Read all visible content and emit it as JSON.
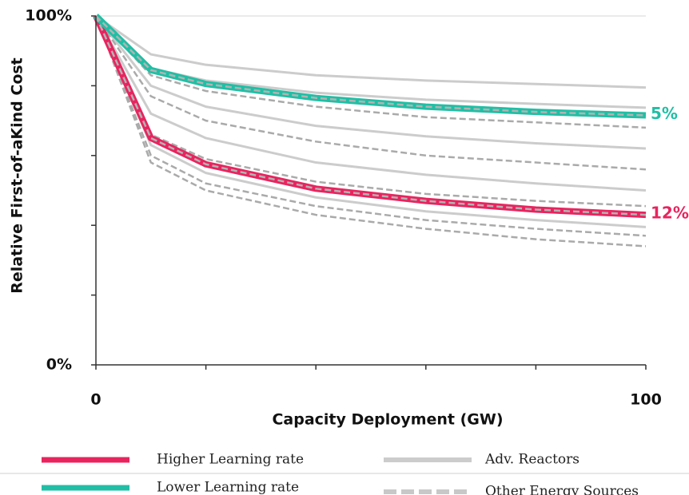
{
  "chart_data": {
    "type": "line",
    "ylabel": "Relative First-of-aKind Cost",
    "xlabel": "Capacity Deployment (GW)",
    "x": [
      0,
      10,
      20,
      40,
      60,
      80,
      100
    ],
    "xlim": [
      0,
      100
    ],
    "ylim": [
      0,
      100
    ],
    "xticks": [
      0,
      {
        "value": 20,
        "label": null
      },
      {
        "value": 40,
        "label": null
      },
      {
        "value": 60,
        "label": null
      },
      {
        "value": 80,
        "label": null
      },
      100
    ],
    "yticks": [
      {
        "value": 0,
        "label": "0%"
      },
      {
        "value": 20,
        "label": null
      },
      {
        "value": 40,
        "label": null
      },
      {
        "value": 60,
        "label": null
      },
      {
        "value": 80,
        "label": null
      },
      {
        "value": 100,
        "label": "100%"
      }
    ],
    "series": [
      {
        "name": "Higher Learning rate",
        "color": "#e8245f",
        "dashed": false,
        "thick": true,
        "end_label": "12%",
        "values": [
          100,
          65,
          57.5,
          50.5,
          47,
          44.5,
          43
        ]
      },
      {
        "name": "Lower Learning rate",
        "color": "#20bfa5",
        "dashed": false,
        "thick": true,
        "end_label": "5%",
        "values": [
          100,
          84.5,
          80.5,
          76.5,
          74,
          72.5,
          71.5
        ]
      },
      {
        "name": "Adv. Reactors",
        "color": "#cccccc",
        "dashed": false,
        "thick": false,
        "values": [
          100,
          89,
          86,
          83,
          81.5,
          80.5,
          79.5
        ]
      },
      {
        "name": "Adv. Reactors",
        "color": "#cccccc",
        "dashed": false,
        "thick": false,
        "values": [
          100,
          85,
          81.5,
          78,
          76,
          74.8,
          73.7
        ]
      },
      {
        "name": "Adv. Reactors",
        "color": "#cccccc",
        "dashed": false,
        "thick": false,
        "values": [
          100,
          80,
          74,
          68.5,
          65.5,
          63.5,
          62
        ]
      },
      {
        "name": "Adv. Reactors",
        "color": "#cccccc",
        "dashed": false,
        "thick": false,
        "values": [
          100,
          72,
          65,
          58,
          54.5,
          52,
          50
        ]
      },
      {
        "name": "Adv. Reactors",
        "color": "#cccccc",
        "dashed": false,
        "thick": false,
        "values": [
          100,
          63,
          55,
          48,
          44,
          41.5,
          39.5
        ]
      },
      {
        "name": "Other Energy Sources",
        "color": "#aaaaaa",
        "dashed": true,
        "thick": false,
        "values": [
          100,
          83,
          78.5,
          74,
          71,
          69.5,
          68
        ]
      },
      {
        "name": "Other Energy Sources",
        "color": "#aaaaaa",
        "dashed": true,
        "thick": false,
        "values": [
          100,
          77,
          70,
          64,
          60,
          58,
          56
        ]
      },
      {
        "name": "Other Energy Sources",
        "color": "#aaaaaa",
        "dashed": true,
        "thick": false,
        "values": [
          100,
          66,
          59,
          52.5,
          49,
          47,
          45.5
        ]
      },
      {
        "name": "Other Energy Sources",
        "color": "#aaaaaa",
        "dashed": true,
        "thick": false,
        "values": [
          100,
          60,
          52,
          45.5,
          41.5,
          39,
          37
        ]
      },
      {
        "name": "Other Energy Sources",
        "color": "#aaaaaa",
        "dashed": true,
        "thick": false,
        "values": [
          100,
          58,
          50,
          43,
          39,
          36,
          34
        ]
      },
      {
        "name": "Other Energy Sources",
        "color": "#b3b3b3",
        "dashed": true,
        "thick": false,
        "values": [
          100,
          65,
          57.5,
          50.5,
          47,
          44.5,
          43
        ]
      },
      {
        "name": "Other Energy Sources",
        "color": "#b3b3b3",
        "dashed": true,
        "thick": false,
        "values": [
          100,
          84.5,
          80.5,
          76.5,
          74,
          72.5,
          71.5
        ]
      }
    ]
  }
}
